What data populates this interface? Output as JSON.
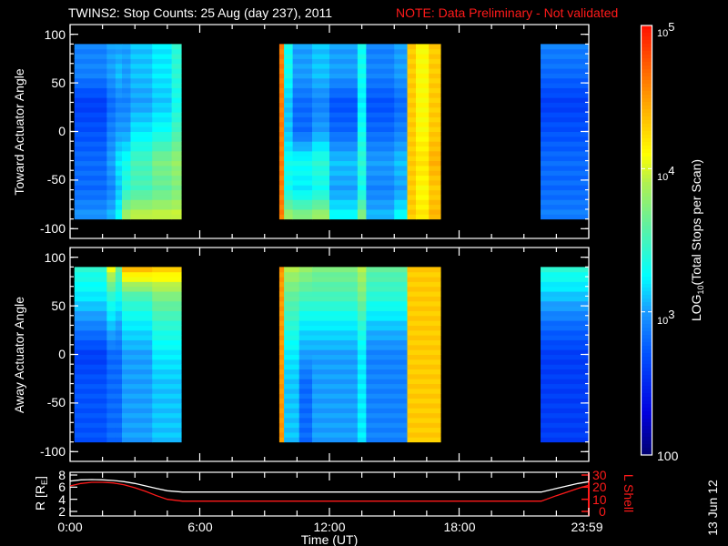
{
  "title": "TWINS2: Stop Counts: 25 Aug (day 237), 2011",
  "note": "NOTE: Data Preliminary - Not validated",
  "note_color": "#ff1a1a",
  "side_date": "13 Jun 12",
  "chart_data": [
    {
      "type": "heatmap",
      "panel": "toward",
      "ylabel": "Toward Actuator Angle",
      "xlim_hours": [
        0,
        24
      ],
      "ylim": [
        -110,
        110
      ],
      "yticks": [
        "100",
        "50",
        "0",
        "-50",
        "-100"
      ],
      "angles": [
        -90,
        -60,
        -30,
        0,
        30,
        60,
        90
      ],
      "value_units": "log10 counts",
      "strips": [
        {
          "t": [
            0.2,
            1.7
          ],
          "v": [
            3.0,
            2.8,
            2.8,
            2.7,
            2.6,
            2.9,
            2.9
          ]
        },
        {
          "t": [
            1.7,
            2.1
          ],
          "v": [
            3.1,
            2.9,
            3.0,
            2.9,
            2.8,
            3.0,
            3.0
          ]
        },
        {
          "t": [
            2.1,
            2.4
          ],
          "v": [
            3.3,
            3.1,
            3.2,
            3.0,
            2.9,
            3.1,
            3.0
          ]
        },
        {
          "t": [
            2.4,
            2.8
          ],
          "v": [
            3.9,
            3.4,
            3.3,
            3.0,
            2.9,
            3.0,
            3.0
          ]
        },
        {
          "t": [
            2.8,
            3.8
          ],
          "v": [
            4.0,
            3.5,
            3.5,
            3.2,
            3.0,
            3.1,
            3.1
          ]
        },
        {
          "t": [
            3.8,
            4.7
          ],
          "v": [
            4.0,
            3.6,
            3.7,
            3.3,
            3.1,
            3.2,
            3.2
          ]
        },
        {
          "t": [
            4.7,
            5.14
          ],
          "v": [
            4.0,
            3.7,
            3.8,
            3.5,
            3.3,
            3.4,
            3.4
          ]
        },
        {
          "t": [
            9.68,
            9.9
          ],
          "v": [
            4.6,
            4.6,
            4.6,
            4.6,
            4.6,
            4.6,
            4.6
          ]
        },
        {
          "t": [
            9.9,
            10.3
          ],
          "v": [
            3.9,
            3.3,
            3.3,
            3.1,
            3.1,
            3.3,
            3.3
          ]
        },
        {
          "t": [
            10.3,
            11.2
          ],
          "v": [
            3.8,
            3.2,
            3.3,
            2.8,
            2.8,
            3.0,
            3.0
          ]
        },
        {
          "t": [
            11.2,
            12.0
          ],
          "v": [
            3.9,
            3.3,
            3.4,
            3.0,
            2.9,
            3.1,
            3.1
          ]
        },
        {
          "t": [
            12.0,
            13.3
          ],
          "v": [
            3.3,
            3.0,
            3.1,
            2.8,
            2.7,
            3.0,
            3.0
          ]
        },
        {
          "t": [
            13.3,
            13.7
          ],
          "v": [
            3.8,
            3.3,
            3.4,
            3.3,
            3.2,
            3.3,
            3.3
          ]
        },
        {
          "t": [
            13.7,
            15.0
          ],
          "v": [
            3.1,
            2.9,
            3.0,
            2.8,
            2.7,
            2.9,
            2.9
          ]
        },
        {
          "t": [
            15.0,
            15.6
          ],
          "v": [
            3.3,
            3.0,
            3.1,
            2.9,
            2.8,
            3.0,
            3.0
          ]
        },
        {
          "t": [
            15.6,
            16.0
          ],
          "v": [
            4.3,
            4.3,
            4.3,
            4.3,
            4.3,
            4.3,
            4.3
          ]
        },
        {
          "t": [
            16.0,
            16.6
          ],
          "v": [
            4.2,
            4.1,
            4.2,
            4.1,
            4.1,
            4.1,
            4.1
          ]
        },
        {
          "t": [
            16.6,
            17.14
          ],
          "v": [
            4.4,
            4.3,
            4.4,
            4.3,
            4.3,
            4.3,
            4.3
          ]
        },
        {
          "t": [
            21.77,
            24.0
          ],
          "v": [
            2.9,
            2.8,
            2.8,
            2.7,
            2.6,
            2.8,
            2.9
          ]
        }
      ]
    },
    {
      "type": "heatmap",
      "panel": "away",
      "ylabel": "Away Actuator Angle",
      "xlim_hours": [
        0,
        24
      ],
      "ylim": [
        -110,
        110
      ],
      "yticks": [
        "100",
        "50",
        "0",
        "-50",
        "-100"
      ],
      "angles": [
        -90,
        -60,
        -30,
        0,
        30,
        60,
        90
      ],
      "value_units": "log10 counts",
      "strips": [
        {
          "t": [
            0.2,
            1.7
          ],
          "v": [
            2.7,
            2.7,
            2.7,
            2.6,
            2.9,
            3.2,
            3.4
          ]
        },
        {
          "t": [
            1.7,
            2.1
          ],
          "v": [
            2.8,
            2.8,
            2.8,
            2.8,
            3.1,
            3.4,
            4.1
          ]
        },
        {
          "t": [
            2.1,
            2.4
          ],
          "v": [
            2.8,
            2.8,
            2.8,
            2.8,
            3.0,
            3.3,
            3.6
          ]
        },
        {
          "t": [
            2.4,
            3.8
          ],
          "v": [
            3.0,
            3.0,
            3.0,
            3.0,
            3.2,
            3.5,
            4.4
          ]
        },
        {
          "t": [
            3.8,
            5.14
          ],
          "v": [
            3.1,
            3.1,
            3.1,
            3.2,
            3.4,
            3.7,
            4.3
          ]
        },
        {
          "t": [
            9.68,
            9.9
          ],
          "v": [
            4.5,
            4.5,
            4.5,
            4.5,
            4.5,
            4.5,
            4.5
          ]
        },
        {
          "t": [
            9.9,
            10.6
          ],
          "v": [
            3.1,
            3.1,
            3.1,
            3.2,
            3.4,
            3.6,
            3.9
          ]
        },
        {
          "t": [
            10.6,
            11.2
          ],
          "v": [
            2.8,
            2.8,
            2.8,
            3.0,
            3.2,
            3.5,
            3.8
          ]
        },
        {
          "t": [
            11.2,
            13.3
          ],
          "v": [
            3.0,
            3.0,
            3.0,
            3.0,
            3.2,
            3.5,
            3.7
          ]
        },
        {
          "t": [
            13.3,
            13.7
          ],
          "v": [
            3.2,
            3.2,
            3.2,
            3.2,
            3.4,
            3.7,
            3.9
          ]
        },
        {
          "t": [
            13.7,
            15.6
          ],
          "v": [
            2.9,
            2.9,
            2.9,
            2.9,
            3.1,
            3.4,
            3.6
          ]
        },
        {
          "t": [
            15.6,
            17.14
          ],
          "v": [
            4.3,
            4.3,
            4.3,
            4.3,
            4.3,
            4.3,
            4.3
          ]
        },
        {
          "t": [
            21.77,
            24.0
          ],
          "v": [
            2.6,
            2.6,
            2.6,
            2.6,
            2.8,
            3.1,
            3.4
          ]
        }
      ]
    },
    {
      "type": "line",
      "panel": "orbit",
      "xlabel": "Time (UT)",
      "xticks": [
        "0:00",
        "6:00",
        "12:00",
        "18:00",
        "23:59"
      ],
      "ylabel_left": {
        "base": "R [R",
        "sub": "E",
        "end": "]"
      },
      "ylabel_right": "L Shell",
      "ylim_left": [
        2,
        8
      ],
      "ylim_right": [
        0,
        30
      ],
      "yticks_left": [
        "8",
        "6",
        "4",
        "2"
      ],
      "yticks_right": [
        "30",
        "20",
        "10",
        "0"
      ],
      "x_hours": [
        0,
        0.5,
        1,
        1.5,
        2,
        2.5,
        3,
        3.5,
        4,
        4.5,
        5.2,
        21.8,
        22.5,
        23,
        23.5,
        24
      ],
      "series": [
        {
          "axis": "left",
          "color": "#ffffff",
          "values": [
            7.0,
            7.2,
            7.25,
            7.2,
            7.1,
            6.9,
            6.6,
            6.2,
            5.8,
            5.4,
            5.2,
            5.2,
            5.8,
            6.2,
            6.6,
            6.9
          ]
        },
        {
          "axis": "right",
          "color": "#ff1a1a",
          "values": [
            21,
            23,
            24,
            24,
            23.5,
            22,
            19.5,
            16.5,
            13,
            10,
            8.5,
            8.5,
            13,
            16,
            19,
            21.5
          ]
        }
      ]
    }
  ],
  "colorbar": {
    "scale": "log",
    "range": [
      100,
      100000
    ],
    "ticks": [
      {
        "base": "10",
        "exp": "5"
      },
      {
        "base": "10",
        "exp": "4"
      },
      {
        "base": "10",
        "exp": "3"
      },
      {
        "base": "100",
        "exp": ""
      }
    ],
    "label": {
      "pre": "LOG",
      "sub": "10",
      "post": "(Total Stops per Scan)"
    },
    "colormap": [
      [
        2.0,
        "#000070"
      ],
      [
        2.3,
        "#0000e0"
      ],
      [
        2.7,
        "#0050ff"
      ],
      [
        3.0,
        "#1a9aff"
      ],
      [
        3.25,
        "#00ffff"
      ],
      [
        3.6,
        "#60f0a0"
      ],
      [
        3.9,
        "#b0f050"
      ],
      [
        4.1,
        "#ffff00"
      ],
      [
        4.5,
        "#ff9900"
      ],
      [
        5.0,
        "#ff1000"
      ]
    ]
  }
}
